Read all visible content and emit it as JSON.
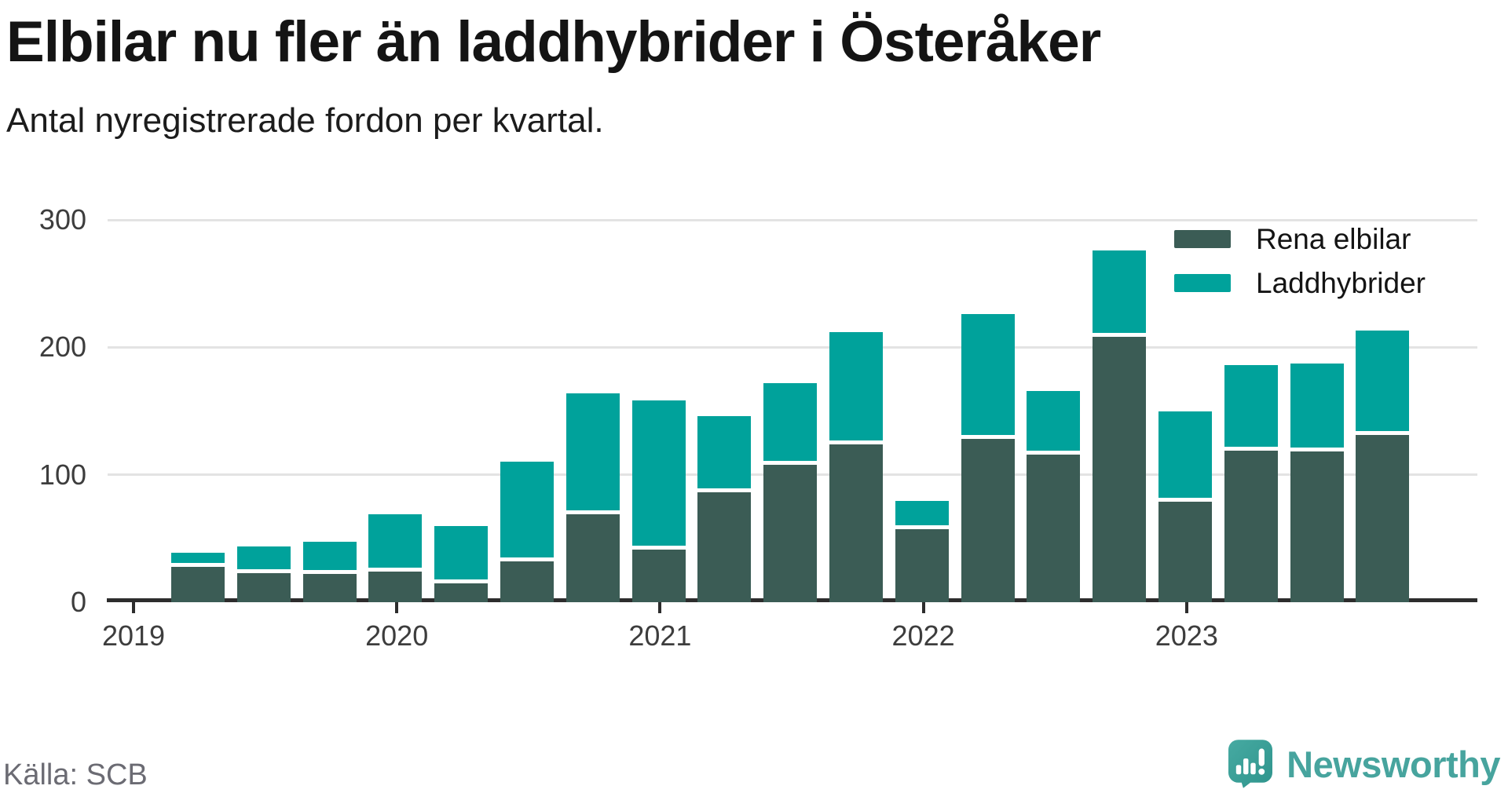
{
  "title": "Elbilar nu fler än laddhybrider i Österåker",
  "subtitle": "Antal nyregistrerade fordon per kvartal.",
  "source": "Källa: SCB",
  "branding": {
    "name": "Newsworthy",
    "icon": "newsworthy-speech-bubble-chart-icon",
    "color": "#47a49e"
  },
  "colors": {
    "electric_dark_teal": "#3b5c55",
    "hybrid_teal": "#00a29b",
    "gridline": "#e3e3e3",
    "axis": "#2d2d2d",
    "text": "#141414",
    "muted_text": "#6b6b73"
  },
  "chart_data": {
    "type": "bar",
    "stacked": true,
    "title": "Elbilar nu fler än laddhybrider i Österåker",
    "subtitle": "Antal nyregistrerade fordon per kvartal.",
    "xlabel": "",
    "ylabel": "",
    "ylim": [
      0,
      300
    ],
    "yticks": [
      0,
      100,
      200,
      300
    ],
    "grid": "horizontal",
    "legend_position": "top-right",
    "xtick_labels": [
      "2019",
      "2020",
      "2021",
      "2022",
      "2023"
    ],
    "categories": [
      "2019 Q1",
      "2019 Q2",
      "2019 Q3",
      "2019 Q4",
      "2020 Q1",
      "2020 Q2",
      "2020 Q3",
      "2020 Q4",
      "2021 Q1",
      "2021 Q2",
      "2021 Q3",
      "2021 Q4",
      "2022 Q1",
      "2022 Q2",
      "2022 Q3",
      "2022 Q4",
      "2023 Q1",
      "2023 Q2",
      "2023 Q3"
    ],
    "series": [
      {
        "name": "Rena elbilar",
        "color": "#3b5c55",
        "values": [
          28,
          23,
          22,
          24,
          15,
          32,
          69,
          41,
          86,
          108,
          124,
          57,
          128,
          116,
          208,
          79,
          119,
          118,
          131
        ]
      },
      {
        "name": "Laddhybrider",
        "color": "#00a29b",
        "values": [
          11,
          21,
          25,
          45,
          45,
          78,
          95,
          117,
          60,
          64,
          88,
          22,
          98,
          50,
          68,
          71,
          67,
          69,
          82
        ]
      }
    ]
  }
}
